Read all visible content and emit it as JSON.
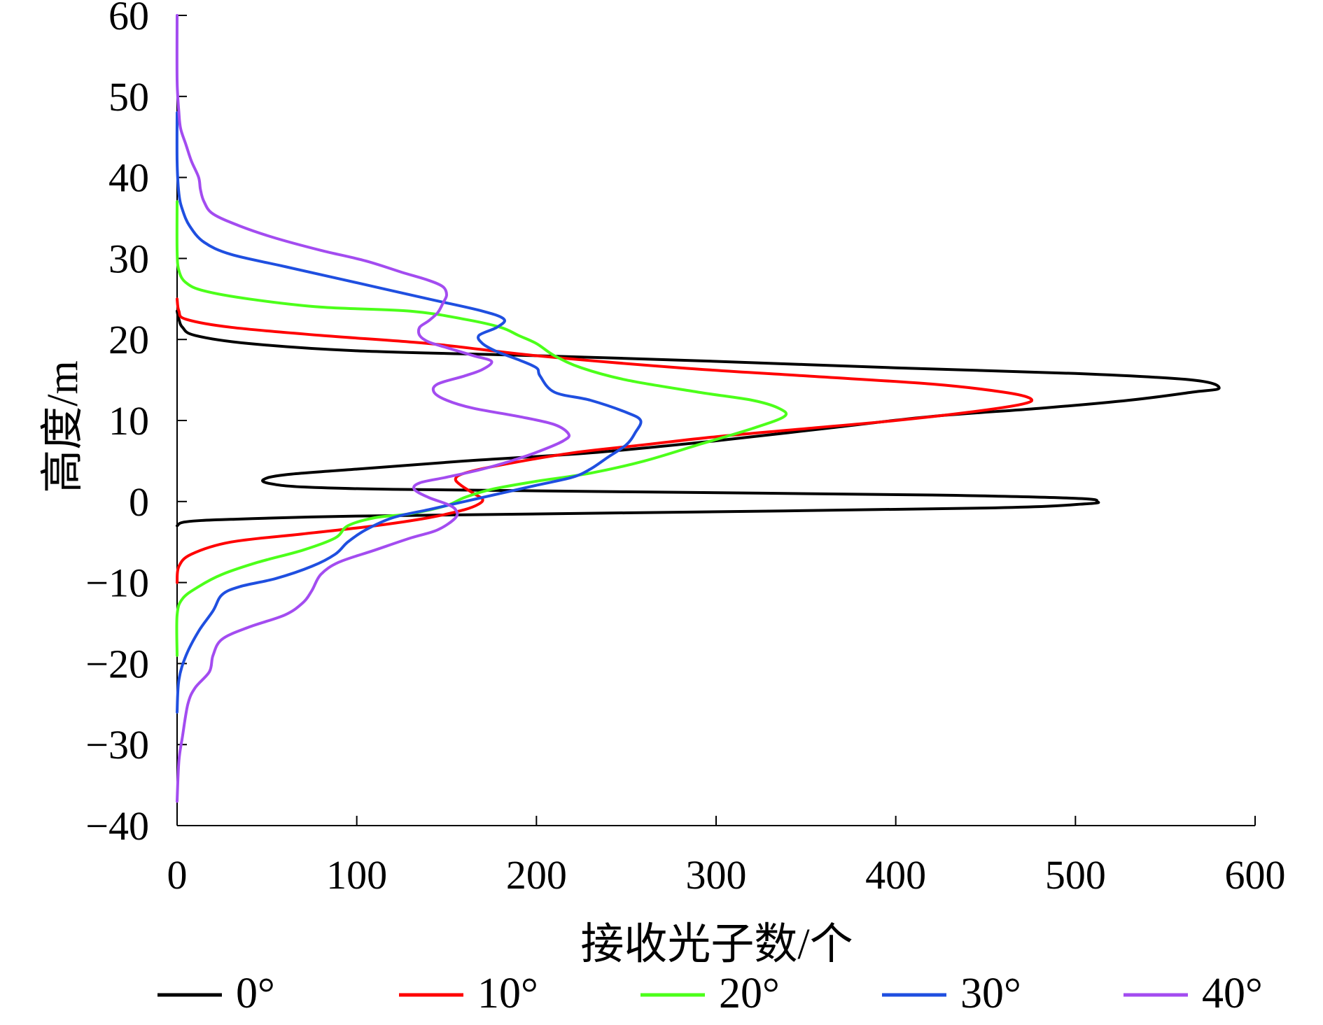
{
  "chart_data": {
    "type": "line",
    "xlabel": "接收光子数/个",
    "ylabel": "高度/m",
    "xlim": [
      0,
      600
    ],
    "ylim": [
      -40,
      60
    ],
    "x_ticks": [
      "0",
      "100",
      "200",
      "300",
      "400",
      "500",
      "600"
    ],
    "y_ticks": [
      "60",
      "50",
      "40",
      "30",
      "20",
      "10",
      "0",
      "−10",
      "−20",
      "−30",
      "−40"
    ],
    "x_tick_values": [
      0,
      100,
      200,
      300,
      400,
      500,
      600
    ],
    "y_tick_values": [
      60,
      50,
      40,
      30,
      20,
      10,
      0,
      -10,
      -20,
      -30,
      -40
    ],
    "grid": false,
    "legend_position": "bottom",
    "series": [
      {
        "name": "0°",
        "color": "#000000",
        "points": [
          [
            0,
            -3
          ],
          [
            5,
            -2.5
          ],
          [
            30,
            -2.2
          ],
          [
            100,
            -1.8
          ],
          [
            250,
            -1.4
          ],
          [
            450,
            -0.8
          ],
          [
            505,
            -0.3
          ],
          [
            512,
            0
          ],
          [
            500,
            0.4
          ],
          [
            420,
            0.8
          ],
          [
            250,
            1.2
          ],
          [
            120,
            1.5
          ],
          [
            70,
            1.8
          ],
          [
            52,
            2.2
          ],
          [
            48,
            2.7
          ],
          [
            60,
            3.3
          ],
          [
            100,
            4
          ],
          [
            160,
            5
          ],
          [
            230,
            6
          ],
          [
            300,
            7.5
          ],
          [
            360,
            9
          ],
          [
            420,
            10.5
          ],
          [
            480,
            11.5
          ],
          [
            530,
            12.5
          ],
          [
            565,
            13.5
          ],
          [
            580,
            14
          ],
          [
            565,
            15
          ],
          [
            500,
            15.8
          ],
          [
            400,
            16.5
          ],
          [
            300,
            17.3
          ],
          [
            200,
            18
          ],
          [
            100,
            18.6
          ],
          [
            40,
            19.5
          ],
          [
            10,
            20.5
          ],
          [
            3,
            21.5
          ],
          [
            1,
            22.5
          ],
          [
            0,
            23.5
          ]
        ]
      },
      {
        "name": "10°",
        "color": "#ff0000",
        "points": [
          [
            0,
            -10
          ],
          [
            1,
            -8
          ],
          [
            8,
            -6.5
          ],
          [
            30,
            -5
          ],
          [
            70,
            -4
          ],
          [
            110,
            -3
          ],
          [
            140,
            -2
          ],
          [
            160,
            -1
          ],
          [
            168,
            -0.3
          ],
          [
            170,
            0.3
          ],
          [
            165,
            1
          ],
          [
            158,
            2
          ],
          [
            155,
            2.8
          ],
          [
            160,
            3.5
          ],
          [
            180,
            4.5
          ],
          [
            220,
            6
          ],
          [
            260,
            7
          ],
          [
            300,
            8
          ],
          [
            350,
            9
          ],
          [
            400,
            10
          ],
          [
            440,
            11
          ],
          [
            470,
            12
          ],
          [
            475,
            12.7
          ],
          [
            460,
            13.5
          ],
          [
            420,
            14.5
          ],
          [
            350,
            15.5
          ],
          [
            280,
            16.5
          ],
          [
            200,
            18
          ],
          [
            140,
            19.5
          ],
          [
            80,
            20.5
          ],
          [
            30,
            21.5
          ],
          [
            5,
            22.5
          ],
          [
            1,
            23.5
          ],
          [
            0,
            25
          ]
        ]
      },
      {
        "name": "20°",
        "color": "#4cff1a",
        "points": [
          [
            0,
            -19
          ],
          [
            0,
            -14
          ],
          [
            3,
            -12
          ],
          [
            12,
            -10.5
          ],
          [
            25,
            -9
          ],
          [
            45,
            -7.5
          ],
          [
            70,
            -6
          ],
          [
            88,
            -4.5
          ],
          [
            95,
            -3
          ],
          [
            110,
            -2
          ],
          [
            130,
            -1.5
          ],
          [
            150,
            -0.5
          ],
          [
            160,
            0.5
          ],
          [
            175,
            1.5
          ],
          [
            200,
            2.5
          ],
          [
            230,
            3.5
          ],
          [
            260,
            5
          ],
          [
            290,
            7
          ],
          [
            320,
            9
          ],
          [
            338,
            10.5
          ],
          [
            335,
            11.5
          ],
          [
            320,
            12.5
          ],
          [
            290,
            13.5
          ],
          [
            250,
            15
          ],
          [
            225,
            16.5
          ],
          [
            210,
            18
          ],
          [
            200,
            19.5
          ],
          [
            190,
            20.5
          ],
          [
            180,
            21.5
          ],
          [
            160,
            22.5
          ],
          [
            130,
            23.5
          ],
          [
            80,
            24
          ],
          [
            40,
            25
          ],
          [
            15,
            26
          ],
          [
            5,
            27
          ],
          [
            1,
            28.5
          ],
          [
            0,
            31
          ],
          [
            0,
            37
          ]
        ]
      },
      {
        "name": "30°",
        "color": "#1f4fe0",
        "points": [
          [
            0,
            -26
          ],
          [
            1,
            -22
          ],
          [
            5,
            -19
          ],
          [
            12,
            -16
          ],
          [
            20,
            -13.5
          ],
          [
            25,
            -11.5
          ],
          [
            35,
            -10.5
          ],
          [
            55,
            -9.5
          ],
          [
            75,
            -8
          ],
          [
            88,
            -6.5
          ],
          [
            95,
            -5
          ],
          [
            105,
            -3.5
          ],
          [
            120,
            -2
          ],
          [
            140,
            -1
          ],
          [
            160,
            0
          ],
          [
            180,
            1
          ],
          [
            200,
            2
          ],
          [
            220,
            3
          ],
          [
            230,
            4
          ],
          [
            240,
            5.5
          ],
          [
            250,
            7
          ],
          [
            255,
            8.5
          ],
          [
            258,
            10
          ],
          [
            250,
            11
          ],
          [
            230,
            12.5
          ],
          [
            210,
            13.5
          ],
          [
            202,
            15.5
          ],
          [
            200,
            16.5
          ],
          [
            190,
            17.5
          ],
          [
            178,
            18.5
          ],
          [
            170,
            19.5
          ],
          [
            168,
            20.5
          ],
          [
            178,
            21.5
          ],
          [
            182,
            22.5
          ],
          [
            170,
            23.5
          ],
          [
            140,
            25
          ],
          [
            100,
            27
          ],
          [
            60,
            29
          ],
          [
            30,
            30.5
          ],
          [
            15,
            32
          ],
          [
            7,
            34
          ],
          [
            3,
            36
          ],
          [
            1,
            38
          ],
          [
            0,
            42
          ],
          [
            0,
            48
          ]
        ]
      },
      {
        "name": "40°",
        "color": "#a34cf0",
        "points": [
          [
            0,
            -37
          ],
          [
            1,
            -32
          ],
          [
            3,
            -29
          ],
          [
            6,
            -25
          ],
          [
            10,
            -23
          ],
          [
            18,
            -21
          ],
          [
            20,
            -19
          ],
          [
            25,
            -17
          ],
          [
            40,
            -15.5
          ],
          [
            60,
            -14
          ],
          [
            70,
            -12.5
          ],
          [
            75,
            -11
          ],
          [
            80,
            -9
          ],
          [
            90,
            -7.5
          ],
          [
            110,
            -6
          ],
          [
            130,
            -4.5
          ],
          [
            145,
            -3.5
          ],
          [
            155,
            -2
          ],
          [
            155,
            -1
          ],
          [
            150,
            -0.3
          ],
          [
            140,
            0.5
          ],
          [
            132,
            1.5
          ],
          [
            135,
            2.3
          ],
          [
            150,
            3
          ],
          [
            170,
            4
          ],
          [
            190,
            5.3
          ],
          [
            205,
            6.5
          ],
          [
            215,
            7.5
          ],
          [
            218,
            8.3
          ],
          [
            210,
            9.5
          ],
          [
            190,
            10.5
          ],
          [
            165,
            11.5
          ],
          [
            150,
            12.5
          ],
          [
            143,
            13.5
          ],
          [
            145,
            14.5
          ],
          [
            160,
            15.5
          ],
          [
            170,
            16.3
          ],
          [
            175,
            17.3
          ],
          [
            165,
            18
          ],
          [
            150,
            19
          ],
          [
            140,
            19.7
          ],
          [
            135,
            20.5
          ],
          [
            135,
            21.5
          ],
          [
            140,
            22.3
          ],
          [
            145,
            23.3
          ],
          [
            148,
            24.5
          ],
          [
            150,
            25.5
          ],
          [
            148,
            26.5
          ],
          [
            140,
            27.3
          ],
          [
            125,
            28.3
          ],
          [
            105,
            29.7
          ],
          [
            80,
            31
          ],
          [
            55,
            32.5
          ],
          [
            35,
            34
          ],
          [
            20,
            35.5
          ],
          [
            15,
            37
          ],
          [
            13,
            38.5
          ],
          [
            12,
            40
          ],
          [
            8,
            42
          ],
          [
            5,
            44
          ],
          [
            2,
            46
          ],
          [
            1,
            48
          ],
          [
            0,
            52
          ],
          [
            0,
            60
          ]
        ]
      }
    ]
  }
}
